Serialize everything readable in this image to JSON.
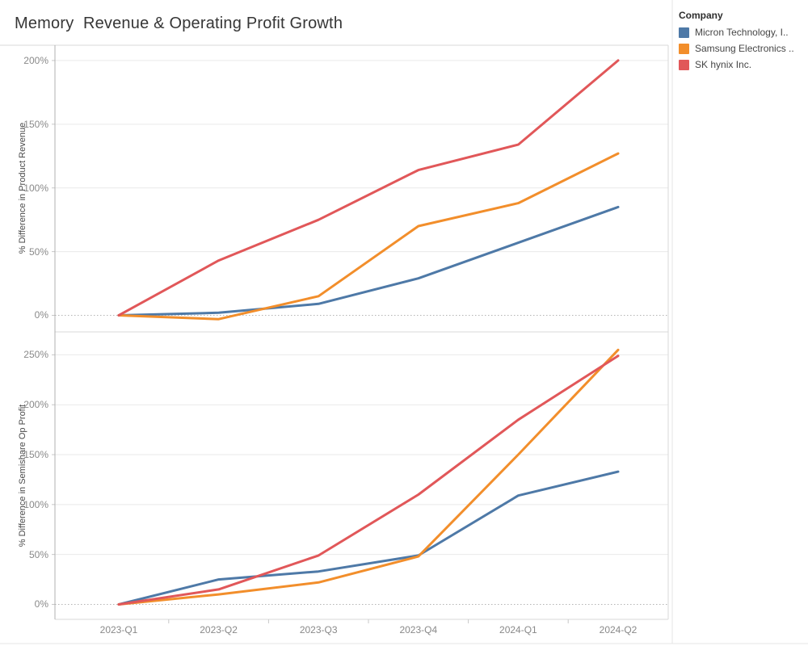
{
  "title": "Memory  Revenue & Operating Profit Growth",
  "legend": {
    "title": "Company",
    "items": [
      {
        "label": "Micron Technology, I..",
        "color": "#4e79a7"
      },
      {
        "label": "Samsung Electronics ..",
        "color": "#f28e2b"
      },
      {
        "label": "SK hynix Inc.",
        "color": "#e15759"
      }
    ]
  },
  "colors": {
    "grid": "#e9e9e9",
    "zero_line": "#b4b4b4",
    "pane_border": "#d9d9d9",
    "axis_line": "#b0b0b0",
    "tick_mark": "#c8c8c8",
    "outer_divider": "#e4e4e4"
  },
  "chart_data": [
    {
      "type": "line",
      "title": "",
      "xlabel": "",
      "ylabel": "% Difference in Product Revenue",
      "x": [
        "2023-Q1",
        "2023-Q2",
        "2023-Q3",
        "2023-Q4",
        "2024-Q1",
        "2024-Q2"
      ],
      "y_ticks": [
        0,
        50,
        100,
        150,
        200
      ],
      "y_tick_suffix": "%",
      "ylim": [
        -13,
        212
      ],
      "grid": true,
      "zero_line": "dotted",
      "legend_position": "right",
      "series": [
        {
          "name": "Micron Technology, I..",
          "color": "#4e79a7",
          "values": [
            0,
            2,
            9,
            29,
            57,
            85
          ]
        },
        {
          "name": "Samsung Electronics ..",
          "color": "#f28e2b",
          "values": [
            0,
            -3,
            15,
            70,
            88,
            127
          ]
        },
        {
          "name": "SK hynix Inc.",
          "color": "#e15759",
          "values": [
            0,
            43,
            75,
            114,
            134,
            200
          ]
        }
      ]
    },
    {
      "type": "line",
      "title": "",
      "xlabel": "",
      "ylabel": "% Difference in Semishare Op Profit",
      "x": [
        "2023-Q1",
        "2023-Q2",
        "2023-Q3",
        "2023-Q4",
        "2024-Q1",
        "2024-Q2"
      ],
      "y_ticks": [
        0,
        50,
        100,
        150,
        200,
        250
      ],
      "y_tick_suffix": "%",
      "ylim": [
        -15,
        273
      ],
      "grid": true,
      "zero_line": "dotted",
      "legend_position": "right",
      "series": [
        {
          "name": "Micron Technology, I..",
          "color": "#4e79a7",
          "values": [
            0,
            25,
            33,
            49,
            109,
            133
          ]
        },
        {
          "name": "Samsung Electronics ..",
          "color": "#f28e2b",
          "values": [
            0,
            10,
            22,
            48,
            150,
            255
          ]
        },
        {
          "name": "SK hynix Inc.",
          "color": "#e15759",
          "values": [
            0,
            15,
            49,
            110,
            185,
            249
          ]
        }
      ]
    }
  ]
}
